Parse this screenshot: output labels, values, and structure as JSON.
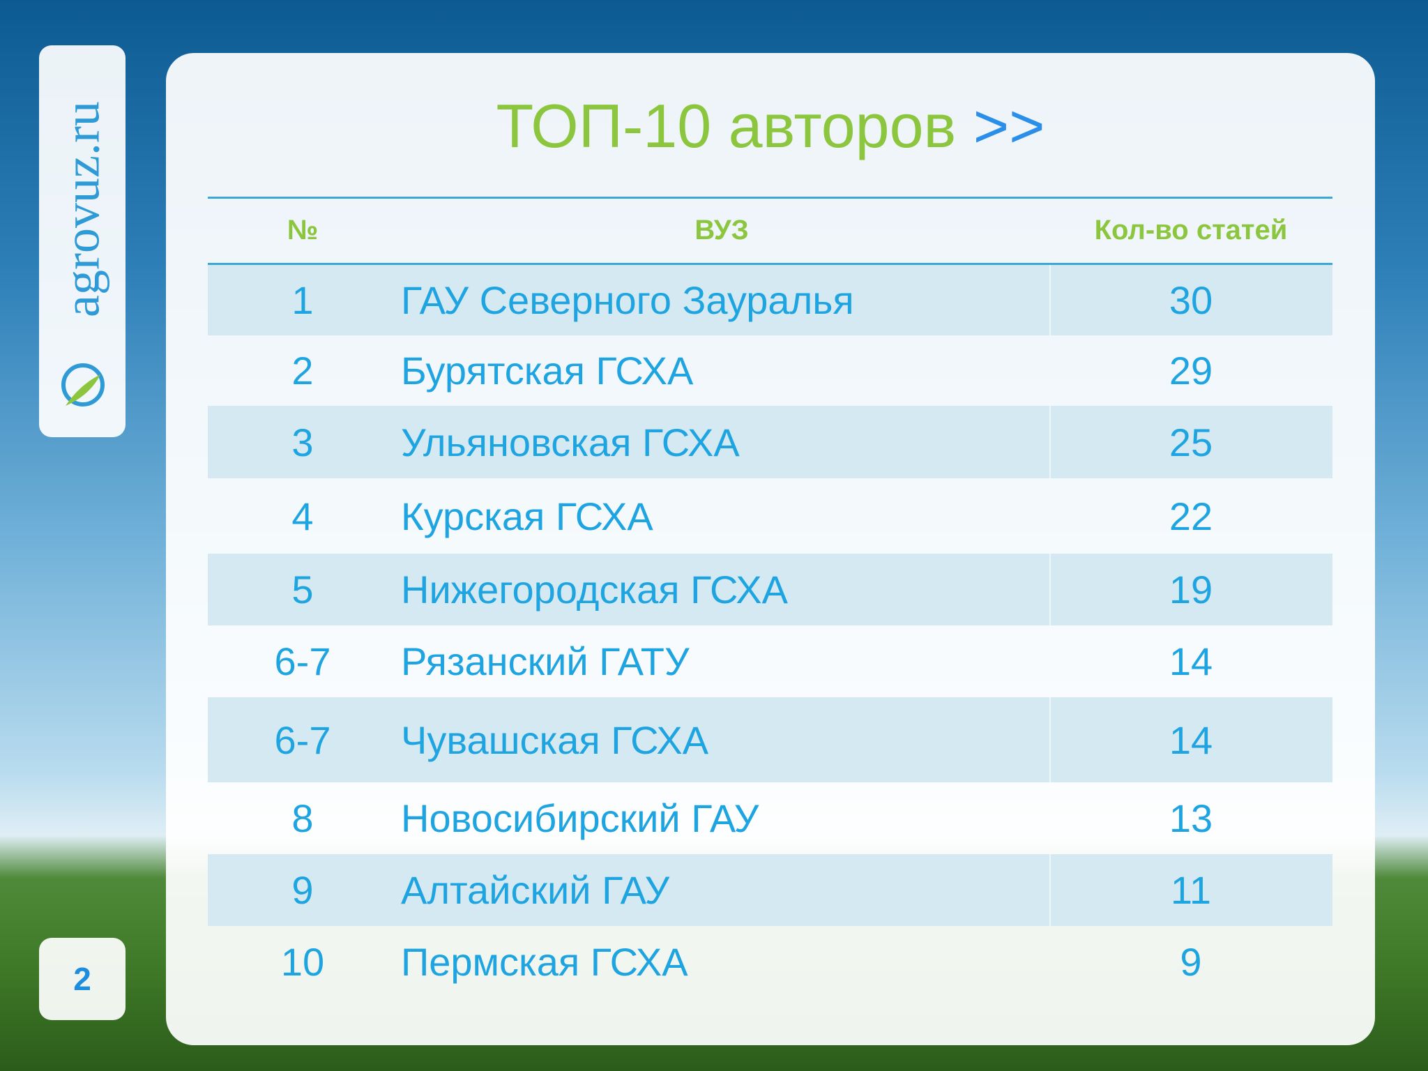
{
  "logo": "agrovuz.ru",
  "page_number": "2",
  "title": "ТОП-10 авторов",
  "title_suffix": ">>",
  "table": {
    "headers": [
      "№",
      "ВУЗ",
      "Кол-во статей"
    ],
    "rows": [
      [
        "1",
        "ГАУ Северного Зауралья",
        "30"
      ],
      [
        "2",
        "Бурятская ГСХА",
        "29"
      ],
      [
        "3",
        "Ульяновская ГСХА",
        "25"
      ],
      [
        "4",
        "Курская ГСХА",
        "22"
      ],
      [
        "5",
        "Нижегородская ГСХА",
        "19"
      ],
      [
        "6-7",
        "Рязанский ГАТУ",
        "14"
      ],
      [
        "6-7",
        "Чувашская ГСХА",
        "14"
      ],
      [
        "8",
        "Новосибирский ГАУ",
        "13"
      ],
      [
        "9",
        "Алтайский ГАУ",
        "11"
      ],
      [
        "10",
        "Пермская ГСХА",
        "9"
      ]
    ]
  }
}
